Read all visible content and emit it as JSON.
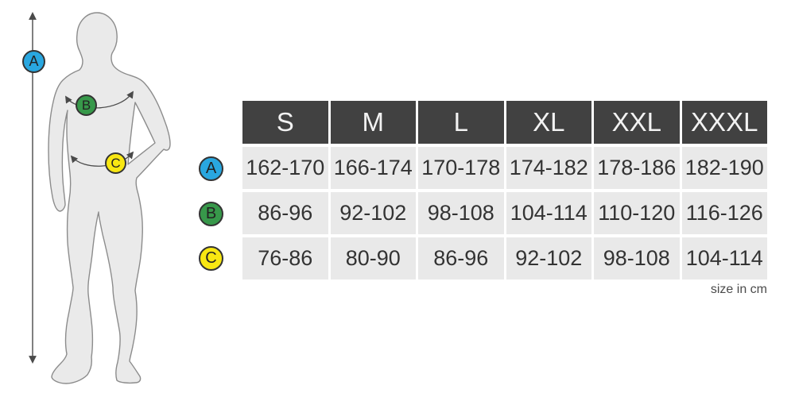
{
  "page": {
    "footnote": "size in cm"
  },
  "figure": {
    "markers": [
      {
        "id": "A",
        "label": "A",
        "color": "#29a7e0"
      },
      {
        "id": "B",
        "label": "B",
        "color": "#37984a"
      },
      {
        "id": "C",
        "label": "C",
        "color": "#f8e712"
      }
    ],
    "icons": [
      "height-arrow",
      "chest-measure-arc",
      "waist-measure-arc"
    ]
  },
  "table": {
    "columns": [
      "S",
      "M",
      "L",
      "XL",
      "XXL",
      "XXXL"
    ],
    "rows": [
      {
        "marker": "A",
        "values": [
          "162-170",
          "166-174",
          "170-178",
          "174-182",
          "178-186",
          "182-190"
        ]
      },
      {
        "marker": "B",
        "values": [
          "86-96",
          "92-102",
          "98-108",
          "104-114",
          "110-120",
          "116-126"
        ]
      },
      {
        "marker": "C",
        "values": [
          "76-86",
          "80-90",
          "86-96",
          "92-102",
          "98-108",
          "104-114"
        ]
      }
    ]
  },
  "colors": {
    "page_bg": "#ffffff",
    "header_bg": "#414141",
    "header_text": "#f2f2f2",
    "cell_bg": "#e9e9e9",
    "cell_text": "#333333",
    "body_fill": "#eaeaea",
    "body_outline": "#8c8c8c",
    "line": "#4a4a4a",
    "badge_border": "#333333",
    "badge_text": "#222222"
  }
}
